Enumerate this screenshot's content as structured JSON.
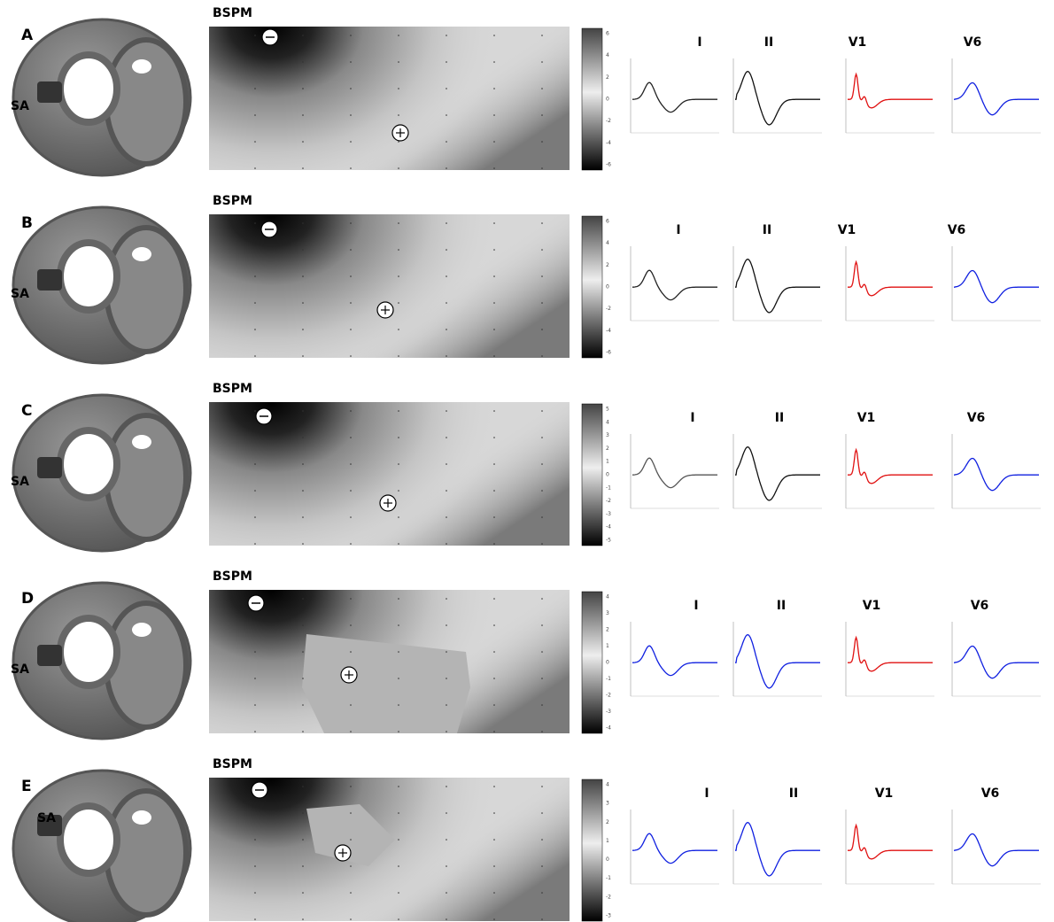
{
  "panels": [
    {
      "label": "A",
      "sa_label": "SA",
      "map_title": "BSPM",
      "colorbar_ticks": [
        "6",
        "4",
        "2",
        "0",
        "-2",
        "-4",
        "-6"
      ],
      "leads": [
        "I",
        "II",
        "V1",
        "V6"
      ]
    },
    {
      "label": "B",
      "sa_label": "SA",
      "map_title": "BSPM",
      "colorbar_ticks": [
        "6",
        "4",
        "2",
        "0",
        "-2",
        "-4",
        "-6"
      ],
      "leads": [
        "I",
        "II",
        "V1",
        "V6"
      ]
    },
    {
      "label": "C",
      "sa_label": "SA",
      "map_title": "BSPM",
      "colorbar_ticks": [
        "5",
        "4",
        "3",
        "2",
        "1",
        "0",
        "-1",
        "-2",
        "-3",
        "-4",
        "-5"
      ],
      "leads": [
        "I",
        "II",
        "V1",
        "V6"
      ]
    },
    {
      "label": "D",
      "sa_label": "SA",
      "map_title": "BSPM",
      "colorbar_ticks": [
        "4",
        "3",
        "2",
        "1",
        "0",
        "-1",
        "-2",
        "-3",
        "-4"
      ],
      "leads": [
        "I",
        "II",
        "V1",
        "V6"
      ]
    },
    {
      "label": "E",
      "sa_label": "SA",
      "map_title": "BSPM",
      "colorbar_ticks": [
        "4",
        "3",
        "2",
        "1",
        "0",
        "-1",
        "-2",
        "-3"
      ],
      "leads": [
        "I",
        "II",
        "V1",
        "V6"
      ]
    }
  ]
}
